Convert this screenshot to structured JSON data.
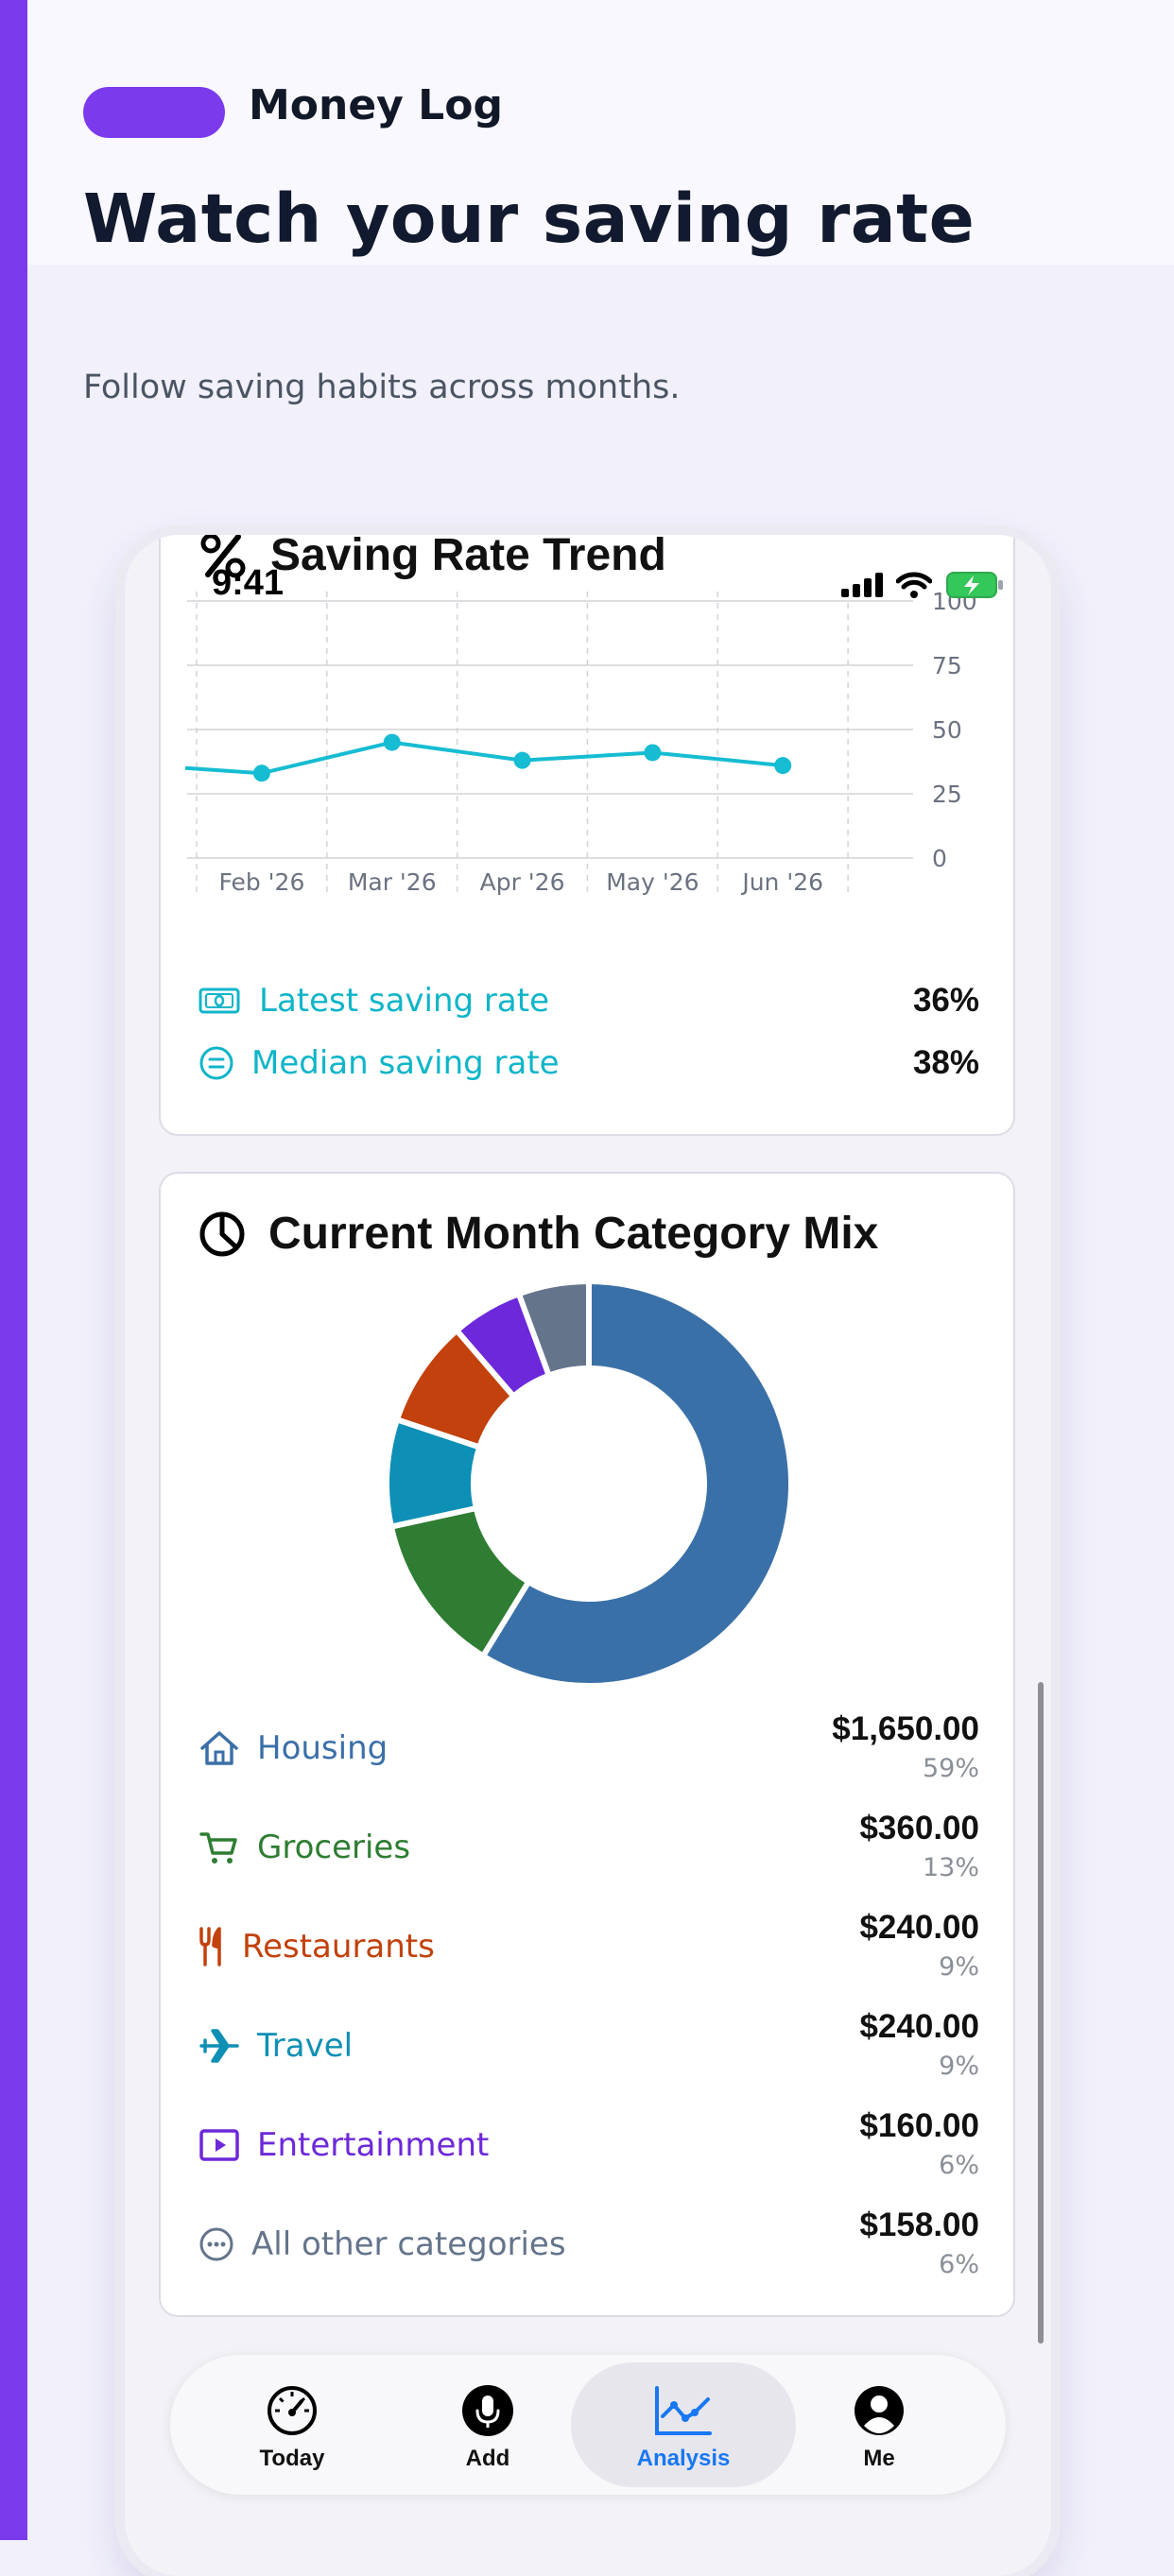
{
  "brand": {
    "name": "Money Log"
  },
  "hero": {
    "headline": "Watch your saving rate",
    "subhead": "Follow saving habits across months."
  },
  "status_bar": {
    "time": "9:41"
  },
  "colors": {
    "accent": "#7c3aed",
    "trend_line": "#16bcd2",
    "active_tab": "#1877f2"
  },
  "saving_card": {
    "title": "Saving Rate Trend",
    "icon": "percent-icon",
    "stats": [
      {
        "label": "Latest saving rate",
        "value": "36%",
        "icon": "banknote-icon"
      },
      {
        "label": "Median saving rate",
        "value": "38%",
        "icon": "equals-circle-icon"
      }
    ]
  },
  "category_card": {
    "title": "Current Month Category Mix",
    "icon": "pie-chart-icon",
    "rows": [
      {
        "name": "Housing",
        "amount": "$1,650.00",
        "percent": "59%",
        "color": "#3a70a8",
        "icon": "house-icon"
      },
      {
        "name": "Groceries",
        "amount": "$360.00",
        "percent": "13%",
        "color": "#2e7d32",
        "icon": "cart-icon"
      },
      {
        "name": "Restaurants",
        "amount": "$240.00",
        "percent": "9%",
        "color": "#c2410c",
        "icon": "fork-knife-icon"
      },
      {
        "name": "Travel",
        "amount": "$240.00",
        "percent": "9%",
        "color": "#0e8fb5",
        "icon": "airplane-icon"
      },
      {
        "name": "Entertainment",
        "amount": "$160.00",
        "percent": "6%",
        "color": "#6d28d9",
        "icon": "play-icon"
      },
      {
        "name": "All other categories",
        "amount": "$158.00",
        "percent": "6%",
        "color": "#64748b",
        "icon": "ellipsis-circle-icon"
      }
    ]
  },
  "chart_data": [
    {
      "type": "line",
      "title": "Saving Rate Trend",
      "x": [
        "Feb '26",
        "Mar '26",
        "Apr '26",
        "May '26",
        "Jun '26"
      ],
      "series": [
        {
          "values": [
            33,
            45,
            38,
            41,
            36
          ]
        }
      ],
      "y_ticks": [
        "0",
        "25",
        "50",
        "75",
        "100"
      ],
      "ylim": [
        0,
        100
      ],
      "y_axis_side": "right",
      "grid": true
    },
    {
      "type": "pie",
      "title": "Current Month Category Mix",
      "donut": true,
      "labels": [
        "Housing",
        "Groceries",
        "Travel",
        "Restaurants",
        "Entertainment",
        "All other categories"
      ],
      "values": [
        1650,
        360,
        240,
        240,
        160,
        158
      ],
      "colors": [
        "#3a70a8",
        "#2e7d32",
        "#0e8fb5",
        "#c2410c",
        "#6d28d9",
        "#64748b"
      ]
    }
  ],
  "tabbar": {
    "tabs": [
      {
        "label": "Today",
        "icon": "speedometer-icon",
        "active": false
      },
      {
        "label": "Add",
        "icon": "microphone-icon",
        "active": false
      },
      {
        "label": "Analysis",
        "icon": "line-chart-icon",
        "active": true
      },
      {
        "label": "Me",
        "icon": "person-circle-icon",
        "active": false
      }
    ]
  }
}
